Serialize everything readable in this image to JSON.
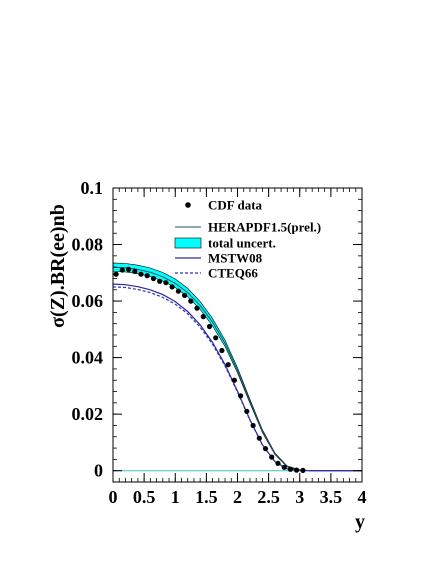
{
  "chart_data": {
    "type": "line",
    "xlabel": "y",
    "ylabel": "σ(Z).BR(ee)nb",
    "xlim": [
      0,
      4
    ],
    "ylim": [
      -0.004,
      0.1
    ],
    "x_ticks": [
      "0",
      "0.5",
      "1",
      "1.5",
      "2",
      "2.5",
      "3",
      "3.5",
      "4"
    ],
    "y_ticks": [
      "0",
      "0.02",
      "0.04",
      "0.06",
      "0.08",
      "0.1"
    ],
    "grid": false,
    "legend_position": "top-right",
    "legend": [
      {
        "label": "CDF data",
        "style": "markers"
      },
      {
        "label": "HERAPDF1.5(prel.)",
        "style": "thin-line"
      },
      {
        "label": "total uncert.",
        "style": "band"
      },
      {
        "label": "MSTW08",
        "style": "solid-line"
      },
      {
        "label": "CTEQ66",
        "style": "dashed-line"
      }
    ],
    "colors": {
      "data": "#000000",
      "herapdf": "#1f4f5f",
      "band": "#00ffff",
      "mstw": "#2a2aa0",
      "cteq": "#3030c0",
      "zero_line": "#40c0c0"
    },
    "series": [
      {
        "name": "CDF data",
        "type": "scatter",
        "x": [
          0.05,
          0.15,
          0.25,
          0.35,
          0.45,
          0.55,
          0.65,
          0.75,
          0.85,
          0.95,
          1.05,
          1.15,
          1.25,
          1.35,
          1.45,
          1.55,
          1.65,
          1.75,
          1.85,
          1.95,
          2.05,
          2.15,
          2.25,
          2.35,
          2.45,
          2.55,
          2.65,
          2.75,
          2.85,
          2.95,
          3.05
        ],
        "y": [
          0.0695,
          0.071,
          0.0712,
          0.0705,
          0.0695,
          0.069,
          0.068,
          0.067,
          0.0665,
          0.065,
          0.0635,
          0.062,
          0.06,
          0.0575,
          0.0545,
          0.051,
          0.047,
          0.0425,
          0.0375,
          0.032,
          0.0265,
          0.021,
          0.016,
          0.0115,
          0.0078,
          0.0048,
          0.0026,
          0.0012,
          0.0005,
          0.0002,
          0.0001
        ]
      },
      {
        "name": "HERAPDF1.5(prel.)",
        "type": "line",
        "x": [
          0,
          0.2,
          0.4,
          0.6,
          0.8,
          1.0,
          1.2,
          1.4,
          1.6,
          1.8,
          2.0,
          2.2,
          2.4,
          2.6,
          2.8,
          3.0,
          3.2,
          3.5,
          4.0
        ],
        "y": [
          0.072,
          0.0718,
          0.0712,
          0.0702,
          0.0686,
          0.0663,
          0.063,
          0.0585,
          0.0525,
          0.045,
          0.0355,
          0.0245,
          0.014,
          0.006,
          0.0015,
          0.0002,
          0,
          0,
          0
        ]
      },
      {
        "name": "total uncert.",
        "type": "band",
        "x": [
          0,
          0.2,
          0.4,
          0.6,
          0.8,
          1.0,
          1.2,
          1.4,
          1.6,
          1.8,
          2.0,
          2.2,
          2.4,
          2.6,
          2.8,
          3.0,
          3.2,
          3.5,
          4.0
        ],
        "low": [
          0.0705,
          0.0703,
          0.0697,
          0.0687,
          0.0671,
          0.0648,
          0.0615,
          0.0571,
          0.0512,
          0.0439,
          0.0346,
          0.0238,
          0.0135,
          0.0057,
          0.0013,
          0.0001,
          0,
          0,
          0
        ],
        "high": [
          0.0735,
          0.0733,
          0.0727,
          0.0717,
          0.0701,
          0.0678,
          0.0645,
          0.0599,
          0.0538,
          0.0461,
          0.0364,
          0.0252,
          0.0145,
          0.0063,
          0.0017,
          0.0003,
          0,
          0,
          0
        ]
      },
      {
        "name": "MSTW08",
        "type": "line",
        "x": [
          0,
          0.2,
          0.4,
          0.6,
          0.8,
          1.0,
          1.2,
          1.4,
          1.6,
          1.8,
          2.0,
          2.2,
          2.4,
          2.6,
          2.8,
          3.0,
          3.2,
          3.5,
          4.0
        ],
        "y": [
          0.066,
          0.0658,
          0.0651,
          0.064,
          0.0623,
          0.0598,
          0.0563,
          0.0516,
          0.0453,
          0.0375,
          0.0281,
          0.018,
          0.0092,
          0.0032,
          0.0006,
          0.0001,
          0,
          0,
          0
        ]
      },
      {
        "name": "CTEQ66",
        "type": "line",
        "x": [
          0,
          0.2,
          0.4,
          0.6,
          0.8,
          1.0,
          1.2,
          1.4,
          1.6,
          1.8,
          2.0,
          2.2,
          2.4,
          2.6,
          2.8,
          3.0,
          3.2,
          3.5,
          4.0
        ],
        "y": [
          0.065,
          0.0648,
          0.0641,
          0.063,
          0.0613,
          0.0589,
          0.0555,
          0.0508,
          0.0447,
          0.037,
          0.0278,
          0.0178,
          0.0091,
          0.0032,
          0.0006,
          0.0001,
          0,
          0,
          0
        ]
      }
    ]
  }
}
